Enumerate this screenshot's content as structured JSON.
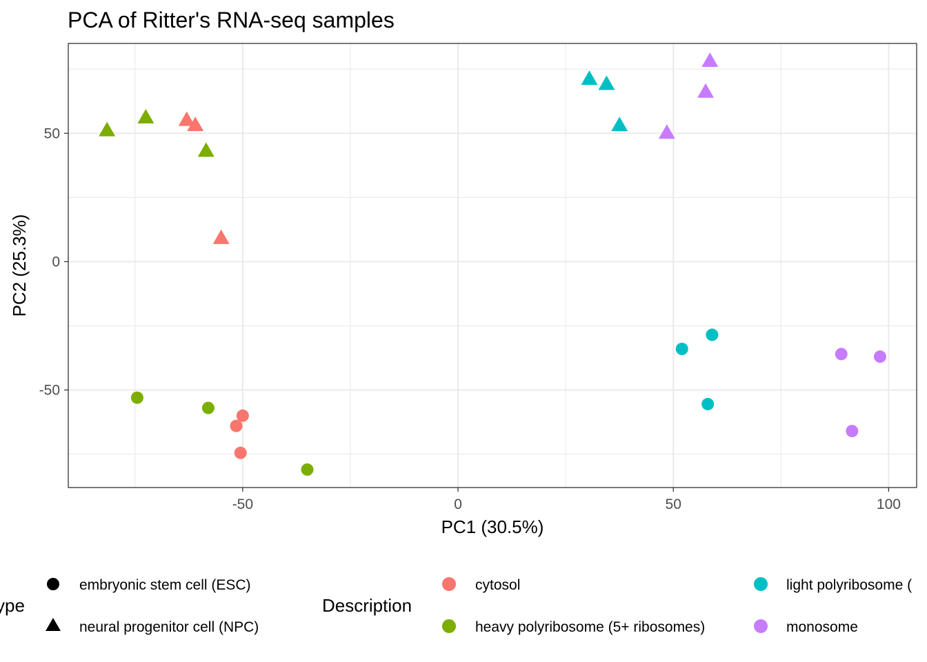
{
  "chart_data": {
    "type": "scatter",
    "title": "PCA of Ritter's RNA-seq samples",
    "xlabel": "PC1 (30.5%)",
    "ylabel": "PC2 (25.3%)",
    "xlim": [
      -90.5,
      106.5
    ],
    "ylim": [
      -88,
      85
    ],
    "x_ticks": [
      -50,
      0,
      50,
      100
    ],
    "y_ticks": [
      -50,
      0,
      50
    ],
    "grid": true,
    "legend_position": "bottom",
    "shape_legend": {
      "title": "ype",
      "entries": [
        {
          "label": "embryonic stem cell (ESC)",
          "shape": "circle"
        },
        {
          "label": "neural progenitor cell (NPC)",
          "shape": "triangle"
        }
      ]
    },
    "color_legend": {
      "title": "Description",
      "entries": [
        {
          "label": "cytosol",
          "color": "#F8766D"
        },
        {
          "label": "heavy polyribosome (5+ ribosomes)",
          "color": "#7CAE00"
        },
        {
          "label": "light polyribosome (",
          "color": "#00BFC4"
        },
        {
          "label": "monosome",
          "color": "#C77CFF"
        }
      ]
    },
    "series": [
      {
        "description": "cytosol",
        "cell_type": "NPC",
        "color": "#F8766D",
        "shape": "triangle",
        "points": [
          [
            -63,
            55
          ],
          [
            -61,
            53
          ],
          [
            -55,
            9
          ]
        ]
      },
      {
        "description": "heavy polyribosome (5+ ribosomes)",
        "cell_type": "NPC",
        "color": "#7CAE00",
        "shape": "triangle",
        "points": [
          [
            -81.5,
            51
          ],
          [
            -72.5,
            56
          ],
          [
            -58.5,
            43
          ]
        ]
      },
      {
        "description": "light polyribosome",
        "cell_type": "NPC",
        "color": "#00BFC4",
        "shape": "triangle",
        "points": [
          [
            30.5,
            71
          ],
          [
            34.5,
            69
          ],
          [
            37.5,
            53
          ]
        ]
      },
      {
        "description": "monosome",
        "cell_type": "NPC",
        "color": "#C77CFF",
        "shape": "triangle",
        "points": [
          [
            48.5,
            50
          ],
          [
            57.5,
            66
          ],
          [
            58.5,
            78
          ]
        ]
      },
      {
        "description": "cytosol",
        "cell_type": "ESC",
        "color": "#F8766D",
        "shape": "circle",
        "points": [
          [
            -50,
            -60
          ],
          [
            -51.5,
            -64
          ],
          [
            -50.5,
            -74.5
          ]
        ]
      },
      {
        "description": "heavy polyribosome (5+ ribosomes)",
        "cell_type": "ESC",
        "color": "#7CAE00",
        "shape": "circle",
        "points": [
          [
            -74.5,
            -53
          ],
          [
            -58,
            -57
          ],
          [
            -35,
            -81
          ]
        ]
      },
      {
        "description": "light polyribosome",
        "cell_type": "ESC",
        "color": "#00BFC4",
        "shape": "circle",
        "points": [
          [
            52,
            -34
          ],
          [
            59,
            -28.5
          ],
          [
            58,
            -55.5
          ]
        ]
      },
      {
        "description": "monosome",
        "cell_type": "ESC",
        "color": "#C77CFF",
        "shape": "circle",
        "points": [
          [
            89,
            -36
          ],
          [
            98,
            -37
          ],
          [
            91.5,
            -66
          ]
        ]
      }
    ]
  }
}
